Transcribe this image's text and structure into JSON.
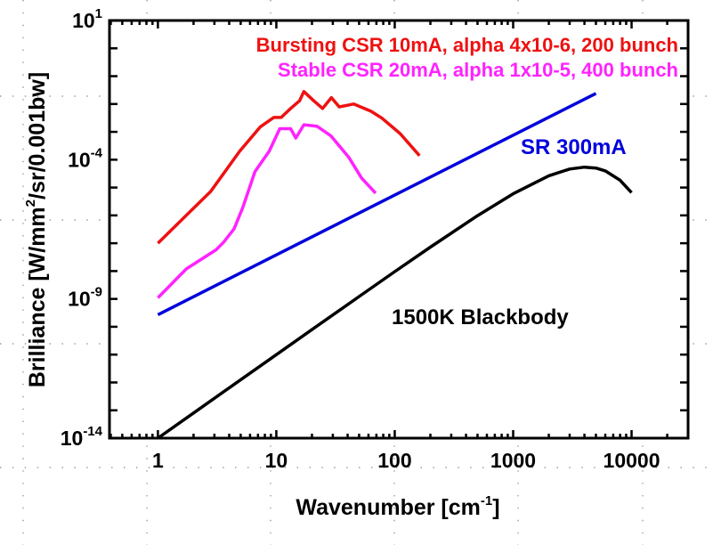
{
  "chart_data": {
    "type": "line",
    "title": "",
    "xlabel": {
      "main": "Wavenumber [cm",
      "sup": "-1",
      "end": "]"
    },
    "ylabel": {
      "main": "Brilliance [W/mm",
      "sup": "2",
      "end": "/sr/0.001bw]"
    },
    "xscale": "log",
    "yscale": "log",
    "xlim": [
      0.39,
      30000
    ],
    "ylim": [
      1e-14,
      10
    ],
    "grid": true,
    "x_ticks": [
      {
        "value": 1,
        "label": "1"
      },
      {
        "value": 10,
        "label": "10"
      },
      {
        "value": 100,
        "label": "100"
      },
      {
        "value": 1000,
        "label": "1000"
      },
      {
        "value": 10000,
        "label": "10000"
      }
    ],
    "y_ticks": [
      {
        "value": 10,
        "base": "10",
        "exp": "1"
      },
      {
        "value": 0.0001,
        "base": "10",
        "exp": "-4"
      },
      {
        "value": 1e-09,
        "base": "10",
        "exp": "-9"
      },
      {
        "value": 1e-14,
        "base": "10",
        "exp": "-14"
      }
    ],
    "series": [
      {
        "name": "Bursting CSR 10mA, alpha 4x10-6, 200 bunch",
        "color": "#ee1111",
        "x": [
          1,
          2.8,
          4.9,
          7.3,
          9.5,
          11,
          13.2,
          15.7,
          17.1,
          20.7,
          24.6,
          29.2,
          34,
          45,
          62.9,
          78,
          111,
          162
        ],
        "y": [
          1e-07,
          7.4e-06,
          0.0002,
          0.0015,
          0.0033,
          0.0033,
          0.0069,
          0.013,
          0.028,
          0.013,
          0.0069,
          0.017,
          0.0079,
          0.01,
          0.0055,
          0.0031,
          0.00087,
          0.00014
        ]
      },
      {
        "name": "Stable CSR 20mA, alpha 1x10-5, 400 bunch",
        "color": "#ff22ff",
        "x": [
          1,
          1.74,
          3.1,
          3.6,
          4.4,
          5.2,
          6.6,
          8.7,
          10.7,
          13.2,
          14.6,
          17.1,
          22,
          29,
          41,
          52.5,
          69
        ],
        "y": [
          1.1e-09,
          1.2e-08,
          5.8e-08,
          1.1e-07,
          3.3e-07,
          1.9e-06,
          3.7e-05,
          0.0002,
          0.0013,
          0.0013,
          0.0006,
          0.0018,
          0.0016,
          0.00071,
          0.00012,
          2.2e-05,
          6.3e-06
        ]
      },
      {
        "name": "SR 300mA",
        "color": "#0000dd",
        "x": [
          1,
          5000
        ],
        "y": [
          2.7e-10,
          0.024
        ]
      },
      {
        "name": "1500K Blackbody",
        "color": "#000000",
        "x": [
          1,
          2,
          5,
          10,
          20,
          50,
          100,
          200,
          500,
          1000,
          2000,
          3000,
          4000,
          5000,
          6000,
          8000,
          10000
        ],
        "y": [
          1e-14,
          8e-14,
          1.25e-12,
          9.96e-12,
          7.93e-11,
          1.22e-09,
          9.54e-09,
          7.26e-08,
          9.75e-07,
          5.96e-06,
          2.64e-05,
          4.64e-05,
          5.41e-05,
          5e-05,
          3.95e-05,
          1.83e-05,
          6.56e-06
        ]
      }
    ]
  }
}
